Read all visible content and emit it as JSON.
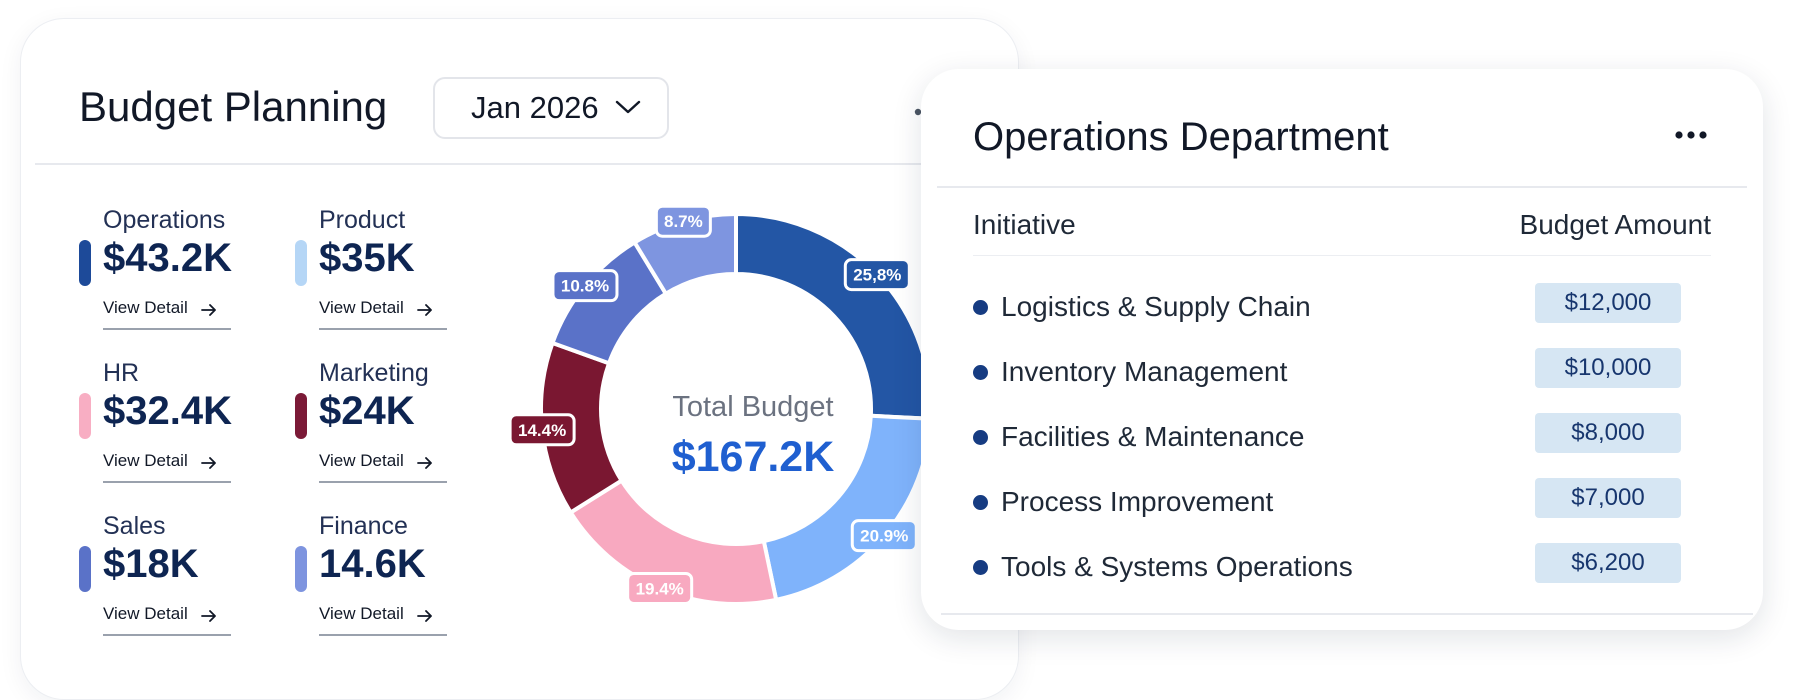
{
  "budget_planning": {
    "title": "Budget Planning",
    "month_selector": {
      "value": "Jan 2026"
    },
    "stats": [
      {
        "name": "Operations",
        "value": "$43.2K",
        "link": "View Detail",
        "color": "#1d4a99"
      },
      {
        "name": "Product",
        "value": "$35K",
        "link": "View Detail",
        "color": "#b5d6f6"
      },
      {
        "name": "HR",
        "value": "$32.4K",
        "link": "View Detail",
        "color": "#f8aec3"
      },
      {
        "name": "Marketing",
        "value": "$24K",
        "link": "View Detail",
        "color": "#7b1a37"
      },
      {
        "name": "Sales",
        "value": "$18K",
        "link": "View Detail",
        "color": "#5a72c8"
      },
      {
        "name": "Finance",
        "value": "14.6K",
        "link": "View Detail",
        "color": "#7e94df"
      }
    ],
    "donut": {
      "center_label": "Total Budget",
      "center_value": "$167.2K",
      "segments": [
        {
          "label": "25,8%",
          "value": 25.8,
          "color": "#2356a5"
        },
        {
          "label": "20.9%",
          "value": 20.9,
          "color": "#7fb3fb"
        },
        {
          "label": "19.4%",
          "value": 19.4,
          "color": "#f8a9c0"
        },
        {
          "label": "14.4%",
          "value": 14.4,
          "color": "#7a1731"
        },
        {
          "label": "10.8%",
          "value": 10.8,
          "color": "#5a72c8"
        },
        {
          "label": "8.7%",
          "value": 8.7,
          "color": "#7e95e0"
        }
      ]
    }
  },
  "operations_department": {
    "title": "Operations Department",
    "columns": {
      "initiative": "Initiative",
      "amount": "Budget Amount"
    },
    "rows": [
      {
        "name": "Logistics & Supply Chain",
        "amount": "$12,000"
      },
      {
        "name": "Inventory Management",
        "amount": "$10,000"
      },
      {
        "name": "Facilities & Maintenance",
        "amount": "$8,000"
      },
      {
        "name": "Process Improvement",
        "amount": "$7,000"
      },
      {
        "name": "Tools & Systems Operations",
        "amount": "$6,200"
      }
    ]
  }
}
